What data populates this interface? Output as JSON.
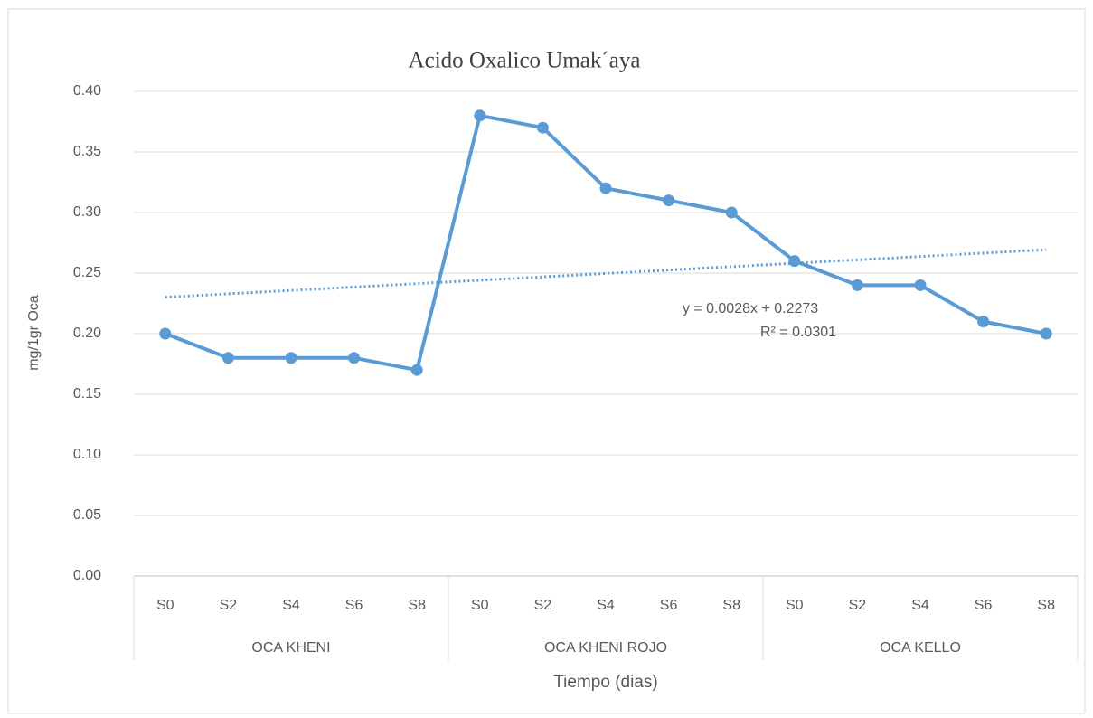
{
  "chart_data": {
    "type": "line",
    "title": "Acido Oxalico Umak´aya",
    "ylabel": "mg/1gr Oca",
    "xlabel": "Tiempo (dias)",
    "categories": [
      "S0",
      "S2",
      "S4",
      "S6",
      "S8",
      "S0",
      "S2",
      "S4",
      "S6",
      "S8",
      "S0",
      "S2",
      "S4",
      "S6",
      "S8"
    ],
    "groups": [
      {
        "name": "OCA KHENI",
        "size": 5
      },
      {
        "name": "OCA KHENI ROJO",
        "size": 5
      },
      {
        "name": "OCA KELLO",
        "size": 5
      }
    ],
    "series": [
      {
        "color": "#5b9bd5",
        "values": [
          0.2,
          0.18,
          0.18,
          0.18,
          0.17,
          0.38,
          0.37,
          0.32,
          0.31,
          0.3,
          0.26,
          0.24,
          0.24,
          0.21,
          0.2
        ]
      }
    ],
    "ylim": [
      0,
      0.4
    ],
    "yticks": [
      {
        "value": 0,
        "label": "0.00"
      },
      {
        "value": 0.05,
        "label": "0.05"
      },
      {
        "value": 0.1,
        "label": "0.10"
      },
      {
        "value": 0.15,
        "label": "0.15"
      },
      {
        "value": 0.2,
        "label": "0.20"
      },
      {
        "value": 0.25,
        "label": "0.25"
      },
      {
        "value": 0.3,
        "label": "0.30"
      },
      {
        "value": 0.35,
        "label": "0.35"
      },
      {
        "value": 0.4,
        "label": "0.40"
      }
    ],
    "grid": true,
    "trendline": {
      "slope": 0.0028,
      "intercept": 0.2273,
      "equation": "y = 0.0028x + 0.2273",
      "r2": "R² = 0.0301"
    }
  }
}
